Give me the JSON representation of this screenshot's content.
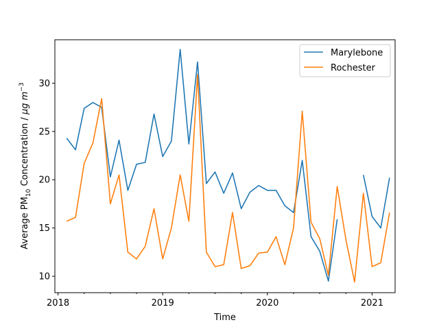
{
  "chart_data": {
    "type": "line",
    "xlabel": "Time",
    "ylabel_main": "Average PM",
    "ylabel_sub": "10",
    "ylabel_rest": " Concentration / ",
    "ylabel_unit_mu": "μ",
    "ylabel_unit_g": "g m",
    "ylabel_unit_exp": "−3",
    "legend_position": "top-right",
    "grid": false,
    "xlim": [
      2017.97,
      2021.22
    ],
    "ylim": [
      8.3,
      34.5
    ],
    "x_ticks": [
      2018,
      2019,
      2020,
      2021
    ],
    "y_ticks": [
      10,
      15,
      20,
      25,
      30
    ],
    "x_tick_labels": [
      "2018",
      "2019",
      "2020",
      "2021"
    ],
    "y_tick_labels": [
      "10",
      "15",
      "20",
      "25",
      "30"
    ],
    "series": [
      {
        "name": "Marylebone",
        "color": "#1f77b4",
        "points": [
          [
            2018.083,
            24.3
          ],
          [
            2018.167,
            23.1
          ],
          [
            2018.25,
            27.4
          ],
          [
            2018.333,
            28.0
          ],
          [
            2018.417,
            27.5
          ],
          [
            2018.5,
            20.3
          ],
          [
            2018.583,
            24.1
          ],
          [
            2018.667,
            18.9
          ],
          [
            2018.75,
            21.6
          ],
          [
            2018.833,
            21.8
          ],
          [
            2018.917,
            26.8
          ],
          [
            2019.0,
            22.4
          ],
          [
            2019.083,
            24.0
          ],
          [
            2019.167,
            33.5
          ],
          [
            2019.25,
            23.7
          ],
          [
            2019.333,
            32.2
          ],
          [
            2019.417,
            19.6
          ],
          [
            2019.5,
            20.8
          ],
          [
            2019.583,
            18.6
          ],
          [
            2019.667,
            20.7
          ],
          [
            2019.75,
            17.0
          ],
          [
            2019.833,
            18.7
          ],
          [
            2019.917,
            19.4
          ],
          [
            2020.0,
            18.9
          ],
          [
            2020.083,
            18.9
          ],
          [
            2020.167,
            17.3
          ],
          [
            2020.25,
            16.6
          ],
          [
            2020.333,
            22.0
          ],
          [
            2020.417,
            14.1
          ],
          [
            2020.5,
            12.6
          ],
          [
            2020.583,
            9.5
          ],
          [
            2020.667,
            15.9
          ],
          null,
          [
            2020.917,
            20.5
          ],
          [
            2021.0,
            16.2
          ],
          [
            2021.083,
            15.0
          ],
          [
            2021.167,
            20.2
          ]
        ]
      },
      {
        "name": "Rochester",
        "color": "#ff7f0e",
        "points": [
          [
            2018.083,
            15.7
          ],
          [
            2018.167,
            16.1
          ],
          [
            2018.25,
            21.7
          ],
          [
            2018.333,
            23.8
          ],
          [
            2018.417,
            28.4
          ],
          [
            2018.5,
            17.5
          ],
          [
            2018.583,
            20.5
          ],
          [
            2018.667,
            12.5
          ],
          [
            2018.75,
            11.8
          ],
          [
            2018.833,
            13.1
          ],
          [
            2018.917,
            17.0
          ],
          [
            2019.0,
            11.8
          ],
          [
            2019.083,
            15.0
          ],
          [
            2019.167,
            20.5
          ],
          [
            2019.25,
            15.7
          ],
          [
            2019.333,
            30.9
          ],
          [
            2019.417,
            12.5
          ],
          [
            2019.5,
            11.0
          ],
          [
            2019.583,
            11.2
          ],
          [
            2019.667,
            16.6
          ],
          [
            2019.75,
            10.8
          ],
          [
            2019.833,
            11.1
          ],
          [
            2019.917,
            12.4
          ],
          [
            2020.0,
            12.5
          ],
          [
            2020.083,
            14.1
          ],
          [
            2020.167,
            11.2
          ],
          [
            2020.25,
            15.0
          ],
          [
            2020.333,
            27.1
          ],
          [
            2020.417,
            15.6
          ],
          [
            2020.5,
            13.9
          ],
          [
            2020.583,
            10.1
          ],
          [
            2020.667,
            19.3
          ],
          [
            2020.75,
            13.8
          ],
          [
            2020.833,
            9.4
          ],
          [
            2020.917,
            18.6
          ],
          [
            2021.0,
            11.0
          ],
          [
            2021.083,
            11.4
          ],
          [
            2021.167,
            16.6
          ]
        ]
      }
    ]
  }
}
